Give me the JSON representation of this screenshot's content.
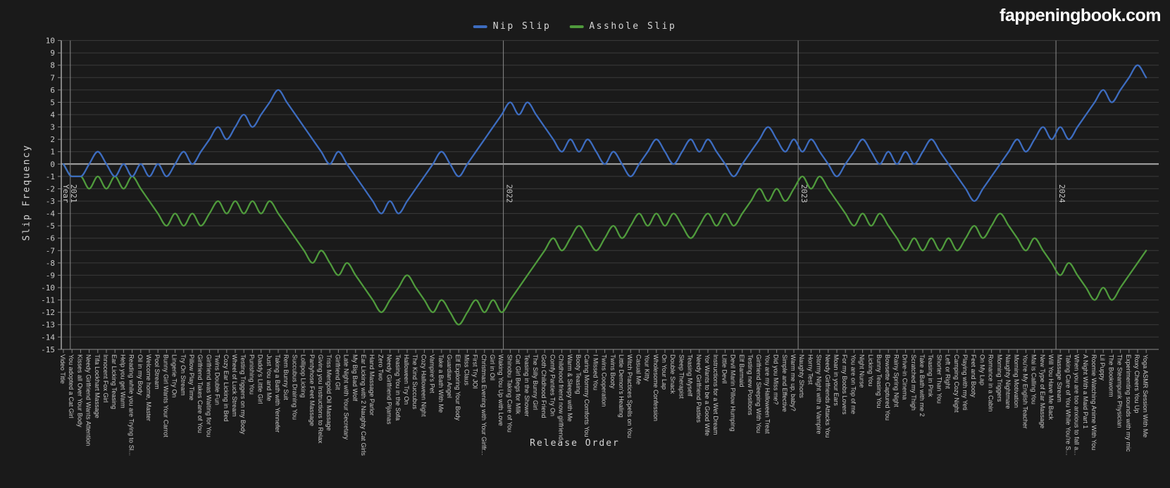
{
  "page": {
    "logo": "fappeningbook.com"
  },
  "chart_data": {
    "type": "line",
    "title": "",
    "xlabel": "Release Order",
    "ylabel": "Slip Frequency",
    "ylim": [
      -15,
      10
    ],
    "ytick_step": 1,
    "grid": true,
    "legend_position": "top-center",
    "background": "#1a1a1a",
    "categories": [
      "Video Title",
      "You adopted a Cat Girl",
      "Kisses all Over Your Body",
      "Needy Girlfriend Wants Attention",
      "Tifa Lockhart Massage",
      "Innocent Fox Girl",
      "Ear Licking Teasing",
      "Help you get Warm",
      "Reading while you are Trying to Sl...",
      "Oil in my Body",
      "Welcome home, Master",
      "Pool Stream",
      "Bunny Girl Wants Your Carrot",
      "Lingerie Try On",
      "Try On Stream",
      "Pillow Play Time",
      "Girlfriend Takes Care of You",
      "Girlfriend was Waiting for You",
      "Twins Double Fun",
      "Cozy Ear Licking in Bed",
      "Wheel of Luck Stream",
      "Testing Triggers on my Body",
      "Punishing You",
      "Daddy's Little Girl",
      "Just You and Me",
      "Taking a Bath with Yennefer",
      "Rem Bunny Suit",
      "Succubus Draining You",
      "Lollipop Licking",
      "Pantyhose Feet Massage",
      "Giving you Instructions to Relax",
      "Triss Merigold Oil Massage",
      "Girlfriend Git",
      "Late Night with Your Secretary",
      "My Big Bad Wolf",
      "Ear Licking with 2 Naughty Cat Girls",
      "Hand Massage Parlor",
      "Zero Two",
      "Needy Girlfriend Pijamas",
      "Teasing You in the Sofa",
      "Halloween Try On",
      "The Kind Succubus",
      "Cozy Halloween Night",
      "Vampire's Pet",
      "Take a Bath With Me",
      "Guardian Angel",
      "Elf Exploring Your Body",
      "Miss Claus",
      "First Try JOI",
      "Christmas Evening with Your Girlfr...",
      "Girl in Oil",
      "Waking You Up with Love",
      "Shinobu Taking Care of You",
      "Cat Girl Begs for Milk",
      "Teasing in the Shower",
      "The Silly Bunny Girl",
      "Goth Childhood Friend",
      "Comfy Panties Try On",
      "Childhood friend now girlfriend",
      "Warm & Sleepy with Me",
      "Booty Teasing",
      "Caring Mommy Comforts You",
      "I Missed You",
      "Twins Cooperation",
      "Twins Booty",
      "Little Demon's Healing",
      "Witch Practices Spells on You",
      "Casual Me",
      "Your Kitty",
      "Wholesome Confession",
      "On Your Lap",
      "Double Snack",
      "Sleep Therapist",
      "Teasing Myself",
      "Needy Girlfriend Pasties",
      "Yor Wants to be a Good Wife",
      "Instructions for a Wet Dream",
      "Little Devil",
      "Devil Marin Pillow Humping",
      "Elf Barmaid",
      "Testing new Positions",
      "Girlfriend Sleeping With You",
      "You are my Halloween Treat",
      "Did you Miss me?",
      "Simple and Effective",
      "Warm me up, baby?",
      "Naughty Shorts",
      "Horny Test",
      "Stormy Night with a Vampire",
      "Needy Girlfriends Attacks You",
      "Moan in your Ears",
      "For my Boobs Lovers",
      "You are on Top of me",
      "Night Nurse",
      "Licking You",
      "Bunny Teasing You",
      "Bowsette Captured You",
      "Rainy Spring Night",
      "Drive-in Cinema",
      "Scratched my Thigh",
      "Take a Bath with me 2",
      "Teasing in Pink",
      "Shorter Than You",
      "Left or Right",
      "Camping Cozy Night",
      "Playing with my Yeti",
      "Feet and Booty",
      "On My Lap",
      "Romance in a Cabin",
      "Morning Triggers",
      "Naughty Nightmare",
      "Morning Motivation",
      "You're My English Teacher",
      "Mai is Calling You",
      "New Type of Ear Massage",
      "Will You Have Me Back",
      "Massage Stream",
      "Taking Care of You While You're S...",
      "When you are too anxious to fall a...",
      "A Night With a Maid Part 1",
      "Roomie Watching Anime With You",
      "Lil Puppy",
      "The Bookworm",
      "The Steampunk Physician",
      "Experimenting sounds with my mic",
      "Roxy Cheers You Up",
      "Yoga ASMR Session With Me"
    ],
    "series": [
      {
        "name": "Nip Slip",
        "color": "#3d6cbf",
        "values": [
          0,
          -1,
          -1,
          0,
          1,
          0,
          -1,
          0,
          -1,
          0,
          -1,
          0,
          -1,
          0,
          1,
          0,
          1,
          2,
          3,
          2,
          3,
          4,
          3,
          4,
          5,
          6,
          5,
          4,
          3,
          2,
          1,
          0,
          1,
          0,
          -1,
          -2,
          -3,
          -4,
          -3,
          -4,
          -3,
          -2,
          -1,
          0,
          1,
          0,
          -1,
          0,
          1,
          2,
          3,
          4,
          5,
          4,
          5,
          4,
          3,
          2,
          1,
          2,
          1,
          2,
          1,
          0,
          1,
          0,
          -1,
          0,
          1,
          2,
          1,
          0,
          1,
          2,
          1,
          2,
          1,
          0,
          -1,
          0,
          1,
          2,
          3,
          2,
          1,
          2,
          1,
          2,
          1,
          0,
          -1,
          0,
          1,
          2,
          1,
          0,
          1,
          0,
          1,
          0,
          1,
          2,
          1,
          0,
          -1,
          -2,
          -3,
          -2,
          -1,
          0,
          1,
          2,
          1,
          2,
          3,
          2,
          3,
          2,
          3,
          4,
          5,
          6,
          5,
          6,
          7,
          8,
          7
        ]
      },
      {
        "name": "Asshole Slip",
        "color": "#4f9a3c",
        "values": [
          0,
          -1,
          -1,
          -2,
          -1,
          -2,
          -1,
          -2,
          -1,
          -2,
          -3,
          -4,
          -5,
          -4,
          -5,
          -4,
          -5,
          -4,
          -3,
          -4,
          -3,
          -4,
          -3,
          -4,
          -3,
          -4,
          -5,
          -6,
          -7,
          -8,
          -7,
          -8,
          -9,
          -8,
          -9,
          -10,
          -11,
          -12,
          -11,
          -10,
          -9,
          -10,
          -11,
          -12,
          -11,
          -12,
          -13,
          -12,
          -11,
          -12,
          -11,
          -12,
          -11,
          -10,
          -9,
          -8,
          -7,
          -6,
          -7,
          -6,
          -5,
          -6,
          -7,
          -6,
          -5,
          -6,
          -5,
          -4,
          -5,
          -4,
          -5,
          -4,
          -5,
          -6,
          -5,
          -4,
          -5,
          -4,
          -5,
          -4,
          -3,
          -2,
          -3,
          -2,
          -3,
          -2,
          -1,
          -2,
          -1,
          -2,
          -3,
          -4,
          -5,
          -4,
          -5,
          -4,
          -5,
          -6,
          -7,
          -6,
          -7,
          -6,
          -7,
          -6,
          -7,
          -6,
          -5,
          -6,
          -5,
          -4,
          -5,
          -6,
          -7,
          -6,
          -7,
          -8,
          -9,
          -8,
          -9,
          -10,
          -11,
          -10,
          -11,
          -10,
          -9,
          -8,
          -7
        ]
      }
    ],
    "year_markers": [
      {
        "lines": [
          "Year",
          "2021"
        ],
        "index": 0.8
      },
      {
        "lines": [
          "2022"
        ],
        "index": 51.2
      },
      {
        "lines": [
          "2023"
        ],
        "index": 85.5
      },
      {
        "lines": [
          "2024"
        ],
        "index": 115.5
      }
    ]
  }
}
